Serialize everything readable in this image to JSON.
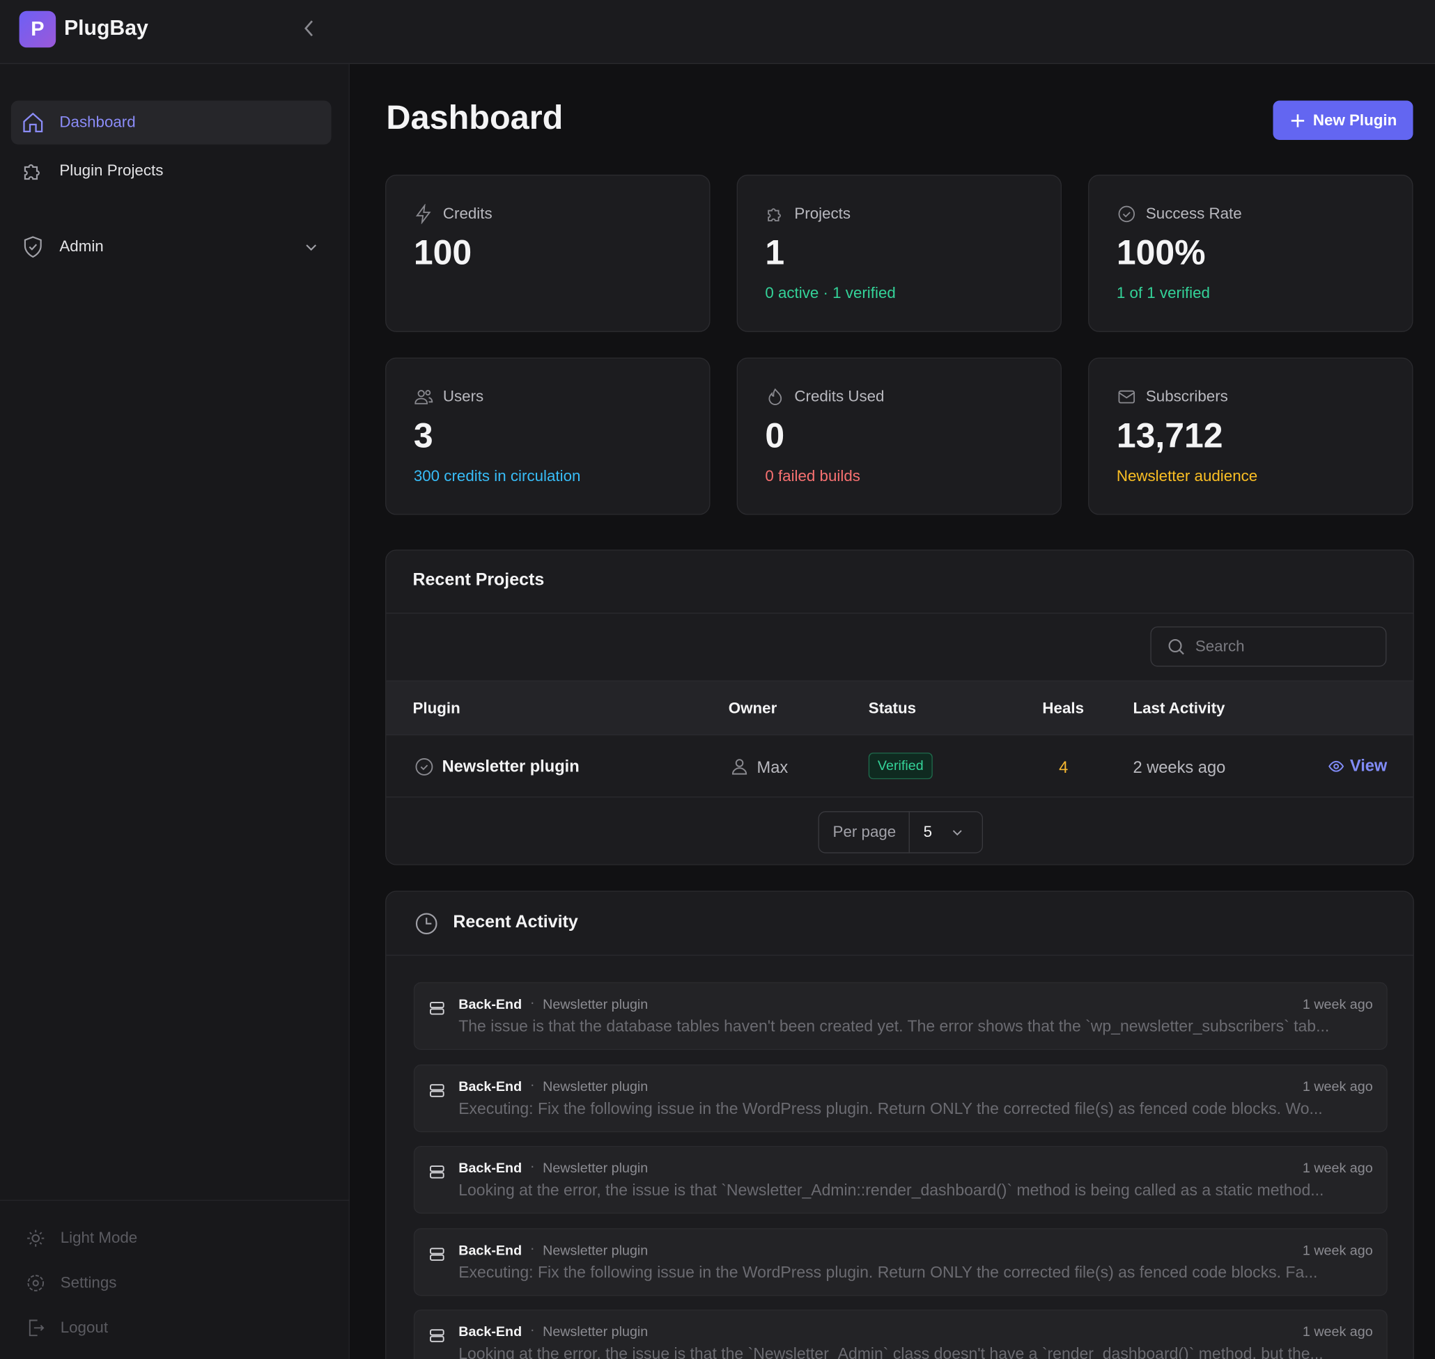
{
  "brand": "PlugBay",
  "logo_letter": "P",
  "nav": [
    "Dashboard",
    "Plugin Projects",
    "Admin"
  ],
  "footer_nav": [
    "Light Mode",
    "Settings",
    "Logout"
  ],
  "header": {
    "title": "Dashboard",
    "button": "New Plugin"
  },
  "stats": [
    {
      "label": "Credits",
      "value": "100"
    },
    {
      "label": "Projects",
      "value": "1",
      "note": "0 active · 1 verified"
    },
    {
      "label": "Success Rate",
      "value": "100%",
      "note": "1 of 1 verified"
    },
    {
      "label": "Users",
      "value": "3",
      "note": "300 credits in circulation"
    },
    {
      "label": "Credits Used",
      "value": "0",
      "note": "0 failed builds"
    },
    {
      "label": "Subscribers",
      "value": "13,712",
      "note": "Newsletter audience"
    }
  ],
  "recent_projects": {
    "title": "Recent Projects",
    "search_placeholder": "Search",
    "columns": [
      "Plugin",
      "Owner",
      "Status",
      "Heals",
      "Last Activity"
    ],
    "rows": [
      [
        "Newsletter plugin",
        "Max",
        "Verified",
        "4",
        "2 weeks ago",
        "View"
      ]
    ],
    "per_page_label": "Per page",
    "per_page": "5"
  },
  "recent_activity": {
    "title": "Recent Activity",
    "items": [
      {
        "tag": "Back-End",
        "project": "Newsletter plugin",
        "time": "1 week ago",
        "text": "The issue is that the database tables haven't been created yet. The error shows that the `wp_newsletter_subscribers` tab..."
      },
      {
        "tag": "Back-End",
        "project": "Newsletter plugin",
        "time": "1 week ago",
        "text": "Executing: Fix the following issue in the WordPress plugin. Return ONLY the corrected file(s) as fenced code blocks. Wo..."
      },
      {
        "tag": "Back-End",
        "project": "Newsletter plugin",
        "time": "1 week ago",
        "text": "Looking at the error, the issue is that `Newsletter_Admin::render_dashboard()` method is being called as a static method..."
      },
      {
        "tag": "Back-End",
        "project": "Newsletter plugin",
        "time": "1 week ago",
        "text": "Executing: Fix the following issue in the WordPress plugin. Return ONLY the corrected file(s) as fenced code blocks. Fa..."
      },
      {
        "tag": "Back-End",
        "project": "Newsletter plugin",
        "time": "1 week ago",
        "text": "Looking at the error, the issue is that the `Newsletter_Admin` class doesn't have a `render_dashboard()` method, but the..."
      }
    ]
  }
}
